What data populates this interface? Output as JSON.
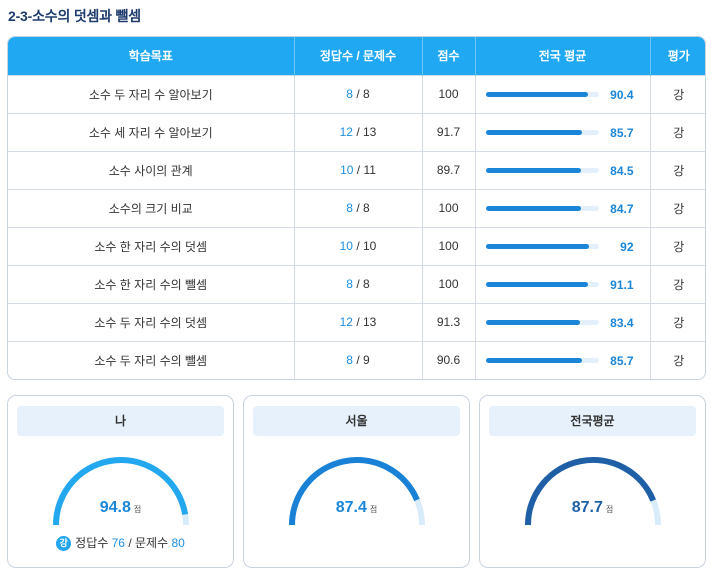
{
  "title": "2-3-소수의 덧셈과 뺄셈",
  "table": {
    "headers": {
      "objective": "학습목표",
      "count": "정답수 / 문제수",
      "score": "점수",
      "national_avg": "전국 평균",
      "evaluation": "평가"
    },
    "rows": [
      {
        "objective": "소수 두 자리 수 알아보기",
        "correct": "8",
        "total": "8",
        "score": "100",
        "avg": "90.4",
        "avg_value": 90.4,
        "eval": "강"
      },
      {
        "objective": "소수 세 자리 수 알아보기",
        "correct": "12",
        "total": "13",
        "score": "91.7",
        "avg": "85.7",
        "avg_value": 85.7,
        "eval": "강"
      },
      {
        "objective": "소수 사이의 관계",
        "correct": "10",
        "total": "11",
        "score": "89.7",
        "avg": "84.5",
        "avg_value": 84.5,
        "eval": "강"
      },
      {
        "objective": "소수의 크기 비교",
        "correct": "8",
        "total": "8",
        "score": "100",
        "avg": "84.7",
        "avg_value": 84.7,
        "eval": "강"
      },
      {
        "objective": "소수 한 자리 수의 덧셈",
        "correct": "10",
        "total": "10",
        "score": "100",
        "avg": "92",
        "avg_value": 92,
        "eval": "강"
      },
      {
        "objective": "소수 한 자리 수의 뺄셈",
        "correct": "8",
        "total": "8",
        "score": "100",
        "avg": "91.1",
        "avg_value": 91.1,
        "eval": "강"
      },
      {
        "objective": "소수 두 자리 수의 덧셈",
        "correct": "12",
        "total": "13",
        "score": "91.3",
        "avg": "83.4",
        "avg_value": 83.4,
        "eval": "강"
      },
      {
        "objective": "소수 두 자리 수의 뺄셈",
        "correct": "8",
        "total": "9",
        "score": "90.6",
        "avg": "85.7",
        "avg_value": 85.7,
        "eval": "강"
      }
    ]
  },
  "cards": [
    {
      "label": "나",
      "value": "94.8",
      "value_num": 94.8,
      "unit": "점",
      "color": "#23a8f0",
      "footer": {
        "grade": "강",
        "correct_label": "정답수",
        "correct": "76",
        "separator": "/",
        "total_label": "문제수",
        "total": "80"
      }
    },
    {
      "label": "서울",
      "value": "87.4",
      "value_num": 87.4,
      "unit": "점",
      "color": "#1a82d6"
    },
    {
      "label": "전국평균",
      "value": "87.7",
      "value_num": 87.7,
      "unit": "점",
      "color": "#1f5fa6"
    }
  ],
  "colors": {
    "header_bg": "#21a8f3",
    "bar": "#1b86d8",
    "bar_track": "#e3f0fb",
    "gauge_track": "#d9ecfa"
  }
}
